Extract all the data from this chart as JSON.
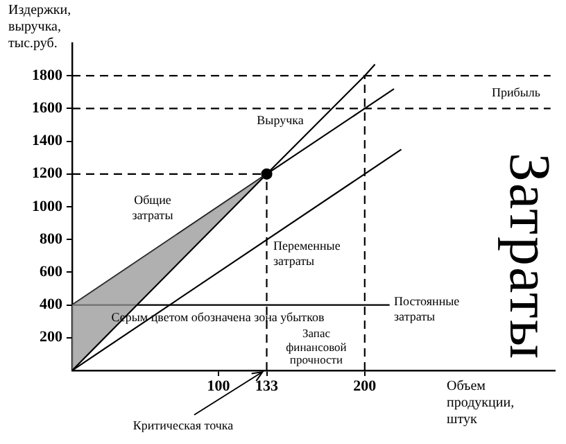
{
  "chart_data": {
    "type": "line",
    "ylabel": "Издержки, выручка, тыс.руб.",
    "xlabel": "Объем продукции, штук",
    "xlim": [
      0,
      330
    ],
    "xticks": [
      100,
      133,
      200
    ],
    "ylim": [
      0,
      2000
    ],
    "yticks": [
      200,
      400,
      600,
      800,
      1000,
      1200,
      1400,
      1600,
      1800
    ],
    "grid": false,
    "legend": false,
    "series": [
      {
        "x": [
          0,
          133,
          200,
          207
        ],
        "values": [
          0,
          1200,
          1800,
          1870
        ],
        "color": "#000000"
      },
      {
        "x": [
          0,
          133,
          200,
          220
        ],
        "values": [
          400,
          1200,
          1600,
          1720
        ],
        "lower": [
          0,
          1200,
          null,
          null
        ],
        "upper": [
          400,
          1200,
          null,
          null
        ],
        "color": "#000000"
      },
      {
        "type": "line",
        "x": [
          0,
          225
        ],
        "values": [
          0,
          1350
        ],
        "color": "#000000"
      },
      {
        "type": "line",
        "x": [
          0,
          217
        ],
        "values": [
          400,
          400
        ],
        "color": "#000000"
      },
      {
        "type": "line",
        "x": [
          0,
          327
        ],
        "values": [
          1800,
          1800
        ],
        "color": "#000000",
        "line_style": "dashed"
      },
      {
        "type": "line",
        "x": [
          0,
          327
        ],
        "values": [
          1600,
          1600
        ],
        "color": "#000000",
        "line_style": "dashed"
      },
      {
        "type": "line",
        "x": [
          0,
          133
        ],
        "values": [
          1200,
          1200
        ],
        "color": "#000000",
        "line_style": "dashed"
      },
      {
        "type": "line",
        "x": [
          133,
          133
        ],
        "values": [
          0,
          1200
        ],
        "color": "#000000",
        "line_style": "dashed"
      },
      {
        "type": "line",
        "x": [
          200,
          200
        ],
        "values": [
          0,
          1800
        ],
        "color": "#000000",
        "line_style": "dashed"
      },
      {
        "type": "scatter",
        "x": [
          133
        ],
        "values": [
          1200
        ],
        "color": "#000000",
        "marker": "circle"
      }
    ],
    "annotations": [
      "Общие затраты",
      "Выручка",
      "Переменные затраты",
      "Постоянные затраты",
      "Прибыль",
      "Серым цветом обозначена зона убытков",
      "Запас финансовой прочности",
      "Критическая точка",
      "Затраты"
    ]
  }
}
